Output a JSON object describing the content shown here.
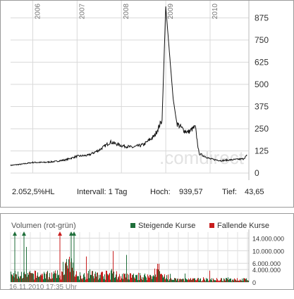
{
  "chart_data": [
    {
      "type": "line",
      "x_tick_labels": [
        "2006",
        "2007",
        "2008",
        "2009",
        "2010"
      ],
      "y_tick_labels": [
        "0",
        "125",
        "250",
        "375",
        "500",
        "625",
        "750",
        "875"
      ],
      "ylim": [
        0,
        940
      ],
      "grid": true,
      "x": [
        "2005-07",
        "2005-10",
        "2006-01",
        "2006-04",
        "2006-07",
        "2006-10",
        "2007-01",
        "2007-04",
        "2007-07",
        "2007-10",
        "2008-01",
        "2008-04",
        "2008-07",
        "2008-10",
        "2008-12",
        "2009-01",
        "2009-03",
        "2009-04",
        "2009-06",
        "2009-07",
        "2009-09",
        "2009-10",
        "2010-01",
        "2010-04",
        "2010-07",
        "2010-10",
        "2010-11"
      ],
      "y": [
        43.65,
        50,
        60,
        60,
        65,
        75,
        95,
        100,
        130,
        175,
        155,
        145,
        160,
        210,
        300,
        939.57,
        420,
        280,
        240,
        230,
        260,
        110,
        80,
        70,
        75,
        80,
        100
      ],
      "stats": {
        "change": "2.052,5%HL",
        "interval": "Intervall: 1 Tag",
        "high_label": "Hoch:",
        "high_value": "939,57",
        "low_label": "Tief:",
        "low_value": "43,65"
      }
    },
    {
      "type": "bar",
      "title": "Volumen (rot-grün)",
      "y_tick_labels": [
        "0",
        "4.000.000",
        "6.000.000",
        "10.000.000",
        "14.000.000"
      ],
      "ylim": [
        0,
        15000000
      ],
      "series": [
        {
          "name": "Steigende Kurse",
          "color": "#1f6e3a"
        },
        {
          "name": "Fallende Kurse",
          "color": "#c81e1e"
        }
      ]
    }
  ],
  "footer": {
    "timestamp": "16.11.2010 17:35 Uhr"
  },
  "watermark": ".comdirect"
}
